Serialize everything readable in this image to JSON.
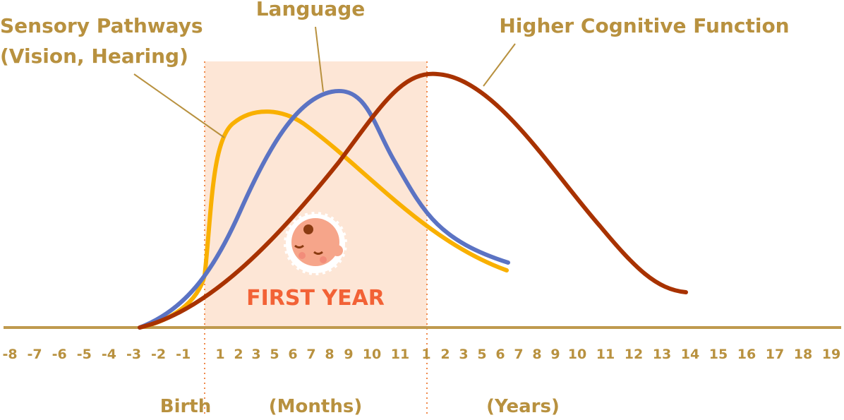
{
  "labels": {
    "sensory": [
      "Sensory Pathways",
      "(Vision, Hearing)"
    ],
    "language": "Language",
    "higher": "Higher Cognitive Function"
  },
  "region_label": "FIRST YEAR",
  "axis": {
    "prenatal": [
      "-8",
      "-7",
      "-6",
      "-5",
      "-4",
      "-3",
      "-2",
      "-1"
    ],
    "months": [
      "1",
      "2",
      "3",
      "5",
      "6",
      "7",
      "8",
      "9",
      "10",
      "11"
    ],
    "years": [
      "1",
      "2",
      "3",
      "5",
      "6",
      "7",
      "8",
      "9",
      "10",
      "11",
      "12",
      "13",
      "14",
      "15",
      "16",
      "17",
      "18",
      "19"
    ]
  },
  "captions": {
    "birth": "Birth",
    "months": "(Months)",
    "years": "(Years)"
  }
}
